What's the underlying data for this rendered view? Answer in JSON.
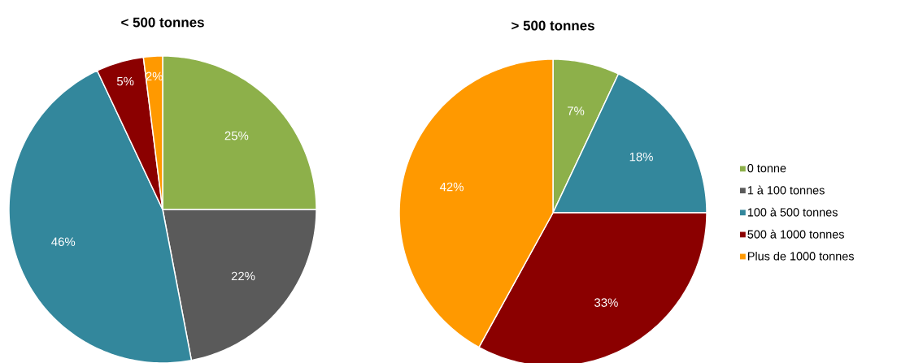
{
  "chart_data": [
    {
      "type": "pie",
      "title": "< 500 tonnes",
      "values": [
        25,
        22,
        46,
        5,
        2
      ],
      "colors": [
        "#8db04a",
        "#5a5a5a",
        "#33879c",
        "#8b0000",
        "#ff9900"
      ],
      "value_labels": [
        "25%",
        "22%",
        "46%",
        "5%",
        "2%"
      ]
    },
    {
      "type": "pie",
      "title": "> 500 tonnes",
      "categories": [
        "0 tonne",
        "1 à 100 tonnes",
        "100 à 500 tonnes",
        "500 à 1000 tonnes",
        "Plus de 1000 tonnes"
      ],
      "values": [
        7,
        0,
        18,
        33,
        42
      ],
      "colors": [
        "#8db04a",
        "#5a5a5a",
        "#33879c",
        "#8b0000",
        "#ff9900"
      ],
      "value_labels": [
        "7%",
        null,
        "18%",
        "33%",
        "42%"
      ],
      "legend": "right"
    }
  ]
}
